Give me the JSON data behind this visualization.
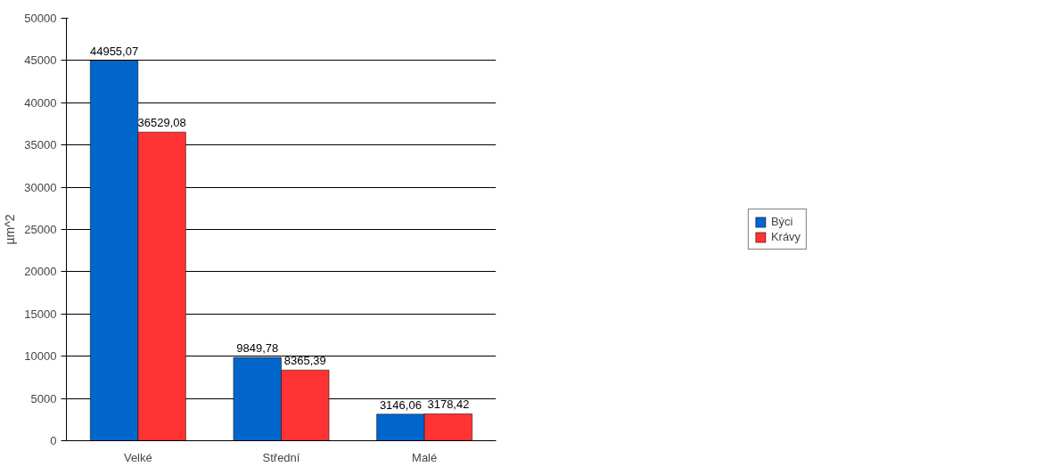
{
  "chart_data": {
    "type": "bar",
    "ylabel": "µm^2",
    "categories": [
      "Velké",
      "Střední",
      "Malé"
    ],
    "series": [
      {
        "name": "Býci",
        "color": "#0066cc",
        "values": [
          44955.07,
          9849.78,
          3146.06
        ],
        "value_labels": [
          "44955,07",
          "9849,78",
          "3146,06"
        ]
      },
      {
        "name": "Krávy",
        "color": "#ff3333",
        "values": [
          36529.08,
          8365.39,
          3178.42
        ],
        "value_labels": [
          "36529,08",
          "8365,39",
          "3178,42"
        ]
      }
    ],
    "ylim": [
      0,
      50000
    ],
    "yticks": [
      0,
      5000,
      10000,
      15000,
      20000,
      25000,
      30000,
      35000,
      40000,
      45000,
      50000
    ],
    "grid": "y",
    "legend": "right"
  }
}
